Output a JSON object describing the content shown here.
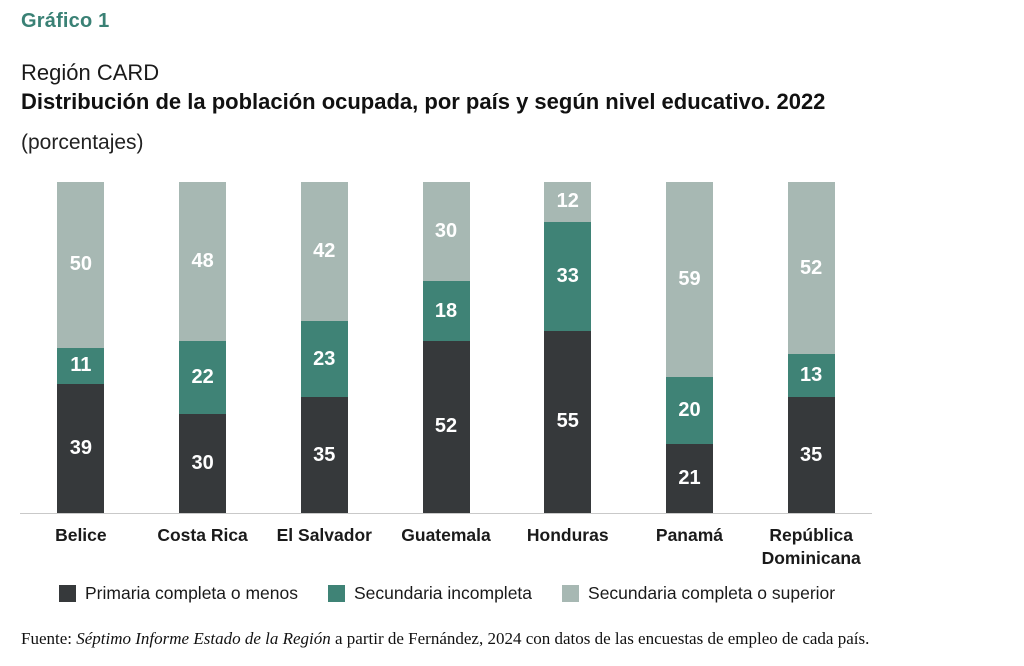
{
  "header": {
    "figure_label": "Gráfico 1",
    "region": "Región CARD",
    "title": "Distribución de la población ocupada, por país y según nivel educativo. 2022",
    "units": "(porcentajes)"
  },
  "chart_data": {
    "type": "bar",
    "stacked": true,
    "orientation": "vertical",
    "categories": [
      "Belice",
      "Costa Rica",
      "El Salvador",
      "Guatemala",
      "Honduras",
      "Panamá",
      "República Dominicana"
    ],
    "series": [
      {
        "name": "Primaria completa o menos",
        "color": "#36393b",
        "values": [
          39,
          30,
          35,
          52,
          55,
          21,
          35
        ]
      },
      {
        "name": "Secundaria incompleta",
        "color": "#3f8376",
        "values": [
          11,
          22,
          23,
          18,
          33,
          20,
          13
        ]
      },
      {
        "name": "Secundaria completa o superior",
        "color": "#a7b8b3",
        "values": [
          50,
          48,
          42,
          30,
          12,
          59,
          52
        ]
      }
    ],
    "title": "Región CARD — Distribución de la población ocupada, por país y según nivel educativo. 2022 (porcentajes)",
    "xlabel": "",
    "ylabel": "",
    "ylim": [
      0,
      100
    ],
    "value_labels": true,
    "value_label_color": "#ffffff",
    "grid": false,
    "legend_position": "bottom"
  },
  "source": {
    "prefix": "Fuente: ",
    "italic": "Séptimo Informe Estado de la Región",
    "suffix": " a partir de Fernández, 2024 con datos de las encuestas de empleo de cada país."
  },
  "colors": {
    "accent_teal": "#3a8175",
    "axis_line": "#c9c9c9",
    "text": "#1a1a1a"
  }
}
